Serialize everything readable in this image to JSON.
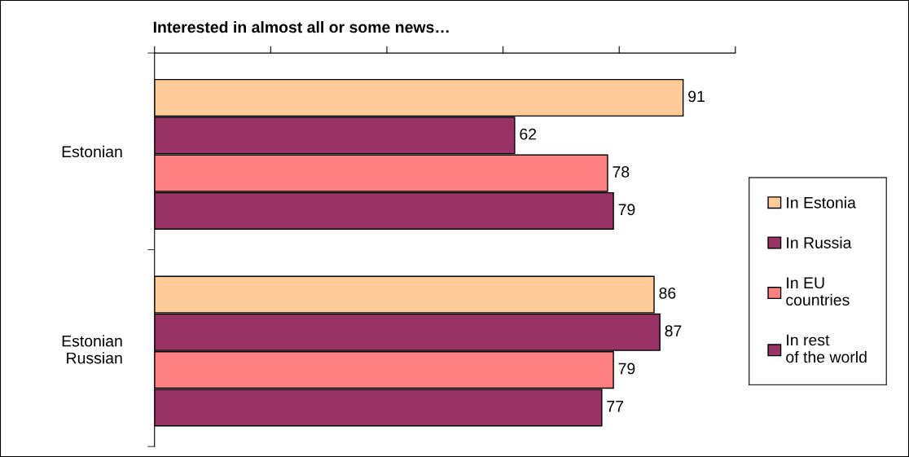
{
  "chart_data": {
    "type": "bar",
    "orientation": "horizontal",
    "title": "Interested in almost all or some news…",
    "categories": [
      "Estonian",
      "Estonian\nRussian"
    ],
    "series": [
      {
        "name": "In Estonia",
        "color": "#ffcc99",
        "values": [
          91,
          86
        ]
      },
      {
        "name": "In Russia",
        "color": "#993366",
        "values": [
          62,
          87
        ]
      },
      {
        "name": "In EU\ncountries",
        "color": "#ff8080",
        "values": [
          78,
          79
        ]
      },
      {
        "name": "In rest\nof the world",
        "color": "#993366",
        "values": [
          79,
          77
        ]
      }
    ],
    "xlim": [
      0,
      100
    ],
    "xticks": [
      {
        "value": 0,
        "label": null
      },
      {
        "value": 20,
        "label": null
      },
      {
        "value": 40,
        "label": null
      },
      {
        "value": 60,
        "label": null
      },
      {
        "value": 80,
        "label": null
      },
      {
        "value": 100,
        "label": null
      }
    ],
    "data_labels": true,
    "grid": false,
    "legend": "right",
    "tick_labels": "y"
  }
}
